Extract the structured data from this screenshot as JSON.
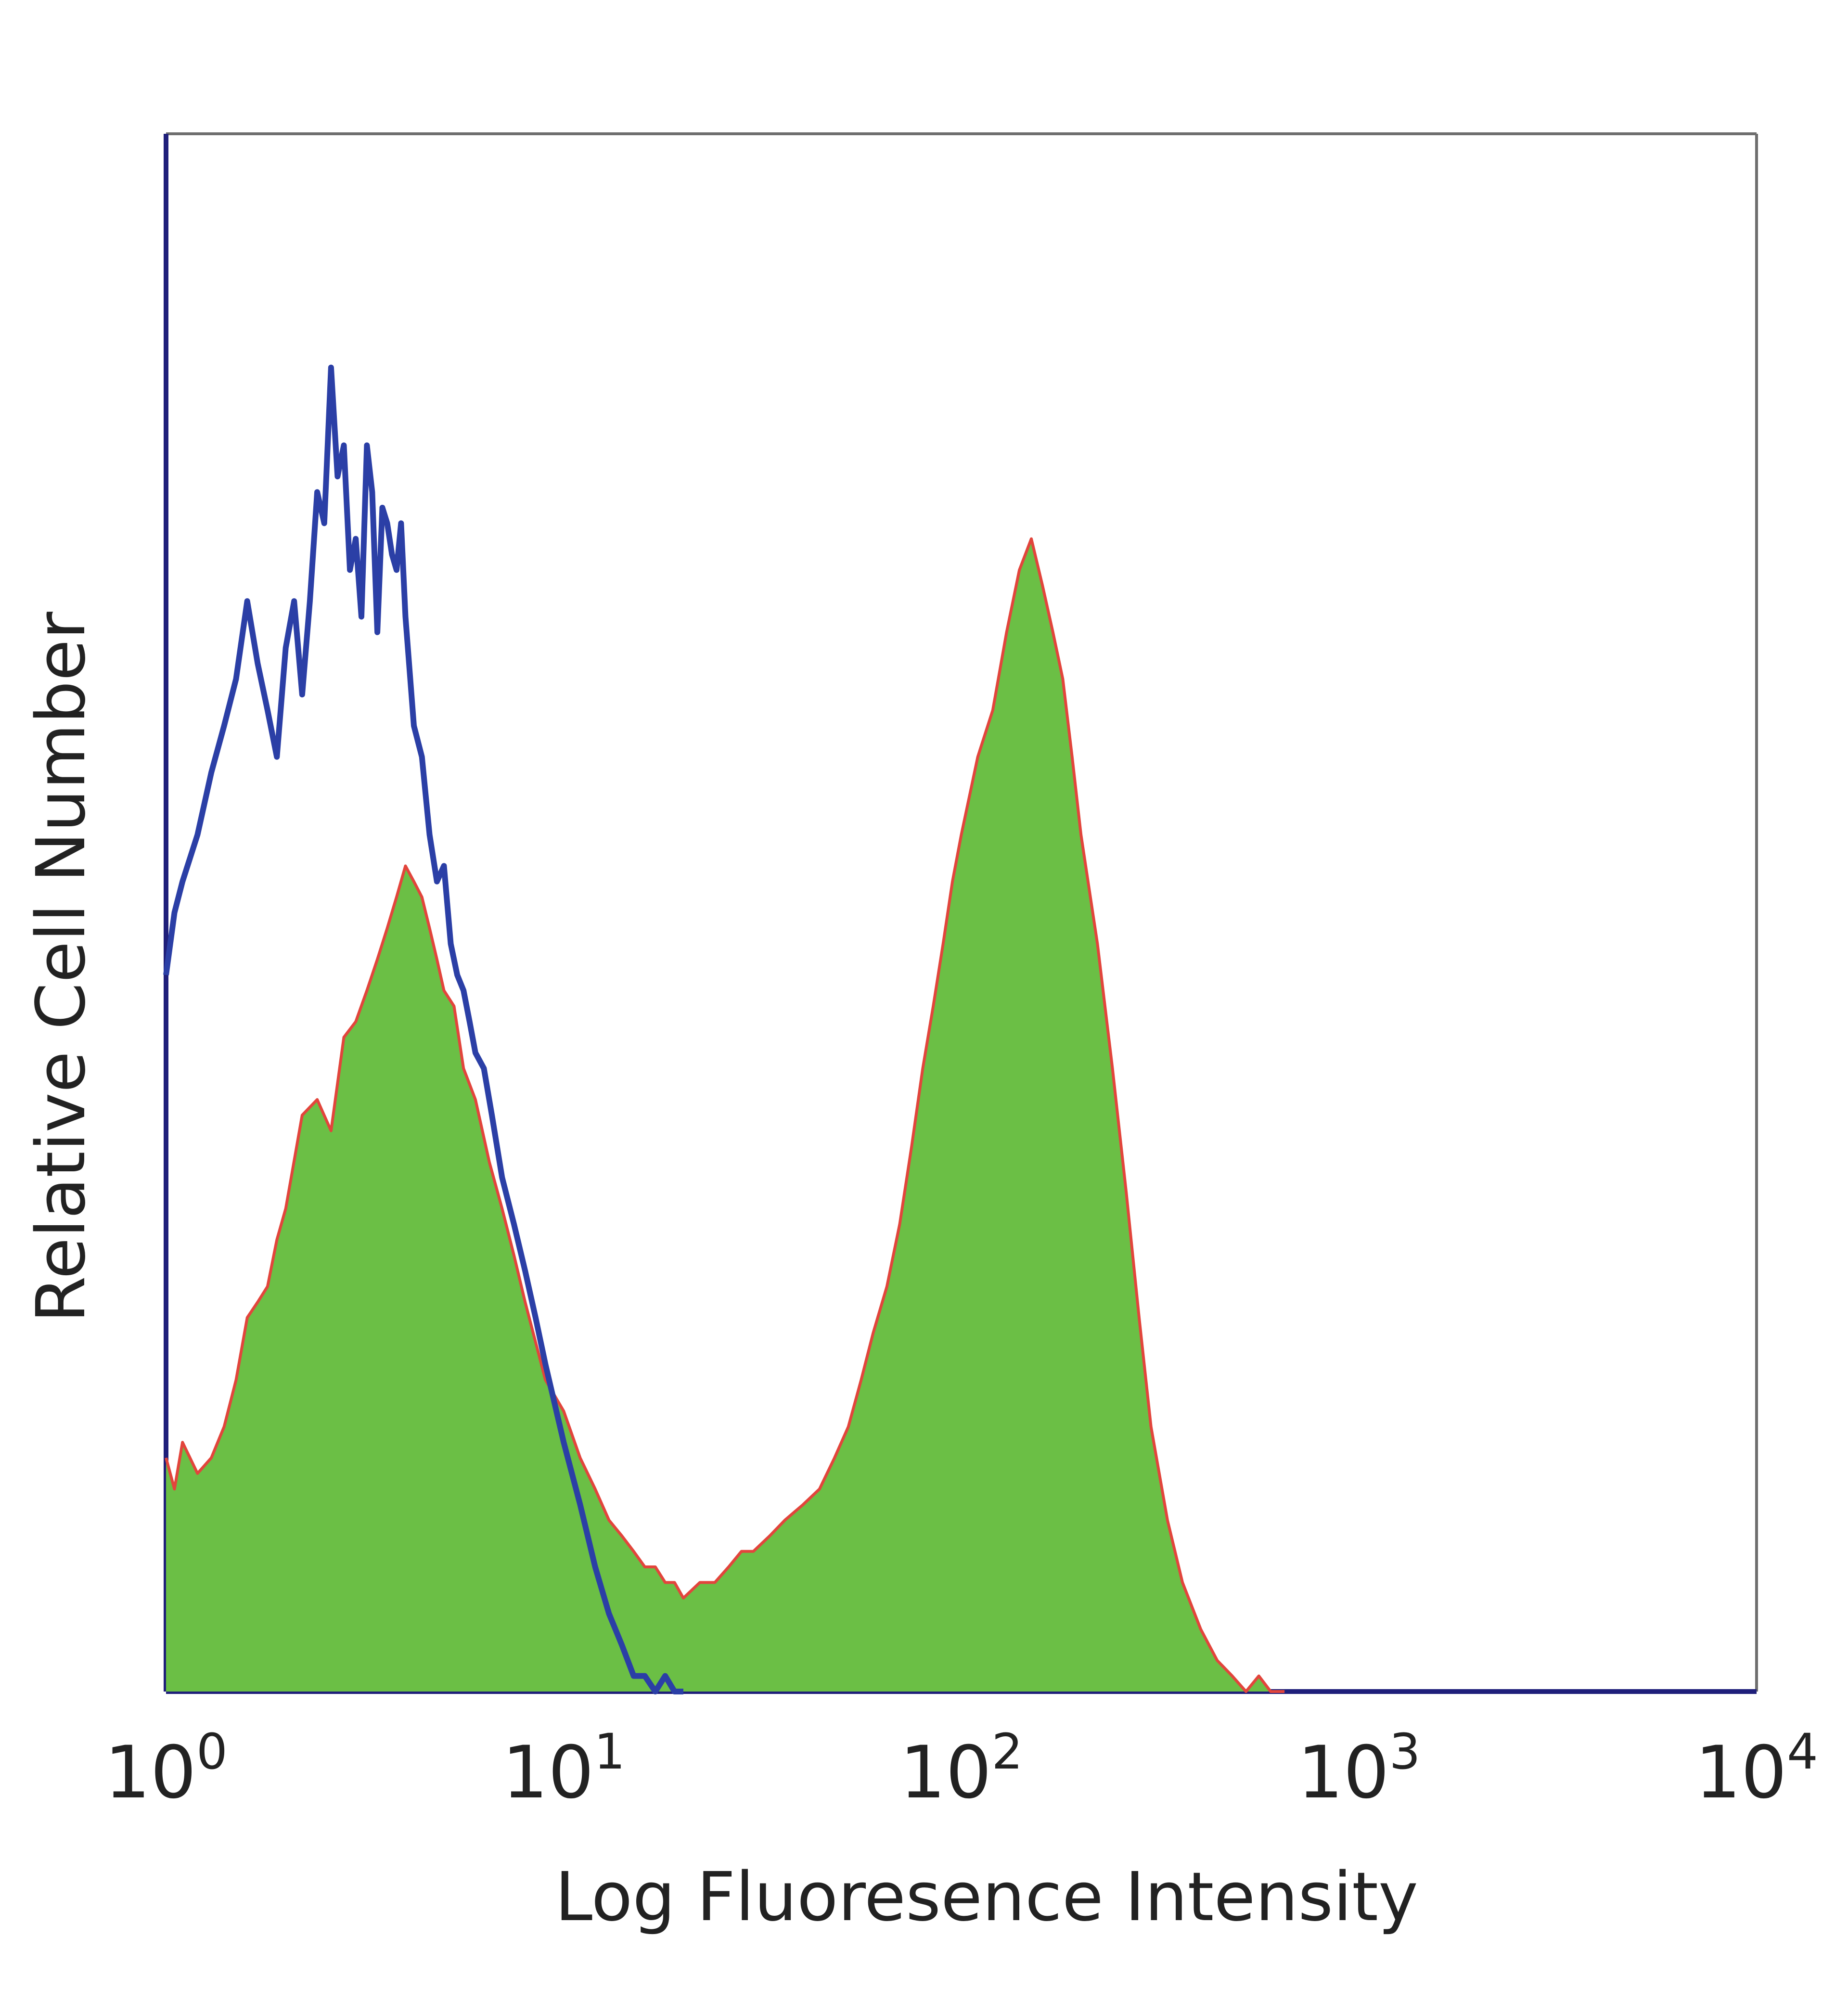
{
  "chart_data": {
    "type": "area",
    "title": "",
    "xlabel": "Log Fluoresence Intensity",
    "ylabel": "Relative Cell Number",
    "x_scale": "log",
    "xlim": [
      1,
      10000
    ],
    "ylim": [
      0,
      100
    ],
    "grid": false,
    "legend": "none",
    "x_ticks": [
      {
        "base": "10",
        "exp": "0",
        "value": 1
      },
      {
        "base": "10",
        "exp": "1",
        "value": 10
      },
      {
        "base": "10",
        "exp": "2",
        "value": 100
      },
      {
        "base": "10",
        "exp": "3",
        "value": 1000
      },
      {
        "base": "10",
        "exp": "4",
        "value": 10000
      }
    ],
    "colors": {
      "frame": "#1f1f7a",
      "blue_line": "#2b3fa6",
      "green_fill": "#6bbf45",
      "red_line": "#e2453c"
    },
    "series": [
      {
        "style": "line",
        "color": "#2b3fa6",
        "x": [
          1.0,
          1.05,
          1.1,
          1.2,
          1.3,
          1.4,
          1.5,
          1.6,
          1.7,
          1.8,
          1.9,
          2.0,
          2.1,
          2.2,
          2.3,
          2.4,
          2.5,
          2.6,
          2.7,
          2.8,
          2.9,
          3.0,
          3.1,
          3.2,
          3.3,
          3.4,
          3.5,
          3.6,
          3.7,
          3.8,
          3.9,
          4.0,
          4.2,
          4.4,
          4.6,
          4.8,
          5.0,
          5.2,
          5.4,
          5.6,
          5.8,
          6.0,
          6.3,
          6.6,
          7.0,
          7.5,
          8.0,
          8.5,
          9.0,
          10.0,
          11.0,
          12.0,
          13.0,
          14.0,
          15.0,
          16.0,
          17.0,
          18.0,
          19.0,
          20.0
        ],
        "y": [
          46,
          50,
          52,
          55,
          59,
          62,
          65,
          70,
          66,
          63,
          60,
          67,
          70,
          64,
          70,
          77,
          75,
          85,
          78,
          80,
          72,
          74,
          69,
          80,
          77,
          68,
          76,
          75,
          73,
          72,
          75,
          69,
          62,
          60,
          55,
          52,
          53,
          48,
          46,
          45,
          43,
          41,
          40,
          37,
          33,
          30,
          27,
          24,
          21,
          16,
          12,
          8,
          5,
          3,
          1,
          1,
          0,
          1,
          0,
          0
        ]
      },
      {
        "style": "filled",
        "color": "#6bbf45",
        "edge": "#e2453c",
        "x": [
          1.0,
          1.05,
          1.1,
          1.2,
          1.3,
          1.4,
          1.5,
          1.6,
          1.7,
          1.8,
          1.9,
          2.0,
          2.2,
          2.4,
          2.6,
          2.8,
          3.0,
          3.2,
          3.4,
          3.6,
          3.8,
          4.0,
          4.2,
          4.4,
          4.6,
          4.8,
          5.0,
          5.3,
          5.6,
          6.0,
          6.5,
          7.0,
          7.5,
          8.0,
          9.0,
          10.0,
          11.0,
          12.0,
          13.0,
          14.0,
          15.0,
          16.0,
          17.0,
          18.0,
          19.0,
          20.0,
          22.0,
          24.0,
          26.0,
          28.0,
          30.0,
          33.0,
          36.0,
          40.0,
          44.0,
          48.0,
          52.0,
          56.0,
          60.0,
          65.0,
          70.0,
          75.0,
          80.0,
          85.0,
          90.0,
          95.0,
          100.0,
          110.0,
          120.0,
          130.0,
          140.0,
          150.0,
          160.0,
          170.0,
          180.0,
          190.0,
          200.0,
          220.0,
          240.0,
          260.0,
          280.0,
          300.0,
          330.0,
          360.0,
          400.0,
          440.0,
          480.0,
          520.0,
          560.0,
          600.0,
          650.0
        ],
        "y": [
          15,
          13,
          16,
          14,
          15,
          17,
          20,
          24,
          25,
          26,
          29,
          31,
          37,
          38,
          36,
          42,
          43,
          45,
          47,
          49,
          51,
          53,
          52,
          51,
          49,
          47,
          45,
          44,
          40,
          38,
          34,
          31,
          28,
          25,
          20,
          18,
          15,
          13,
          11,
          10,
          9,
          8,
          8,
          7,
          7,
          6,
          7,
          7,
          8,
          9,
          9,
          10,
          11,
          12,
          13,
          15,
          17,
          20,
          23,
          26,
          30,
          35,
          40,
          44,
          48,
          52,
          55,
          60,
          63,
          68,
          72,
          74,
          71,
          68,
          65,
          60,
          55,
          48,
          40,
          32,
          24,
          17,
          11,
          7,
          4,
          2,
          1,
          0,
          1,
          0,
          0
        ]
      }
    ]
  }
}
